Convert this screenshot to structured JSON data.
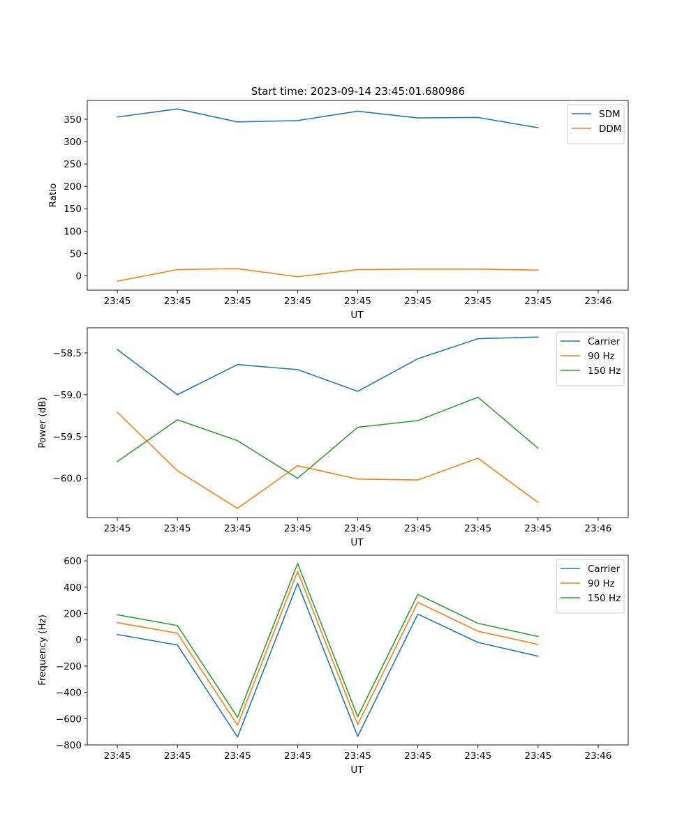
{
  "figure": {
    "title": "Start time: 2023-09-14 23:45:01.680986"
  },
  "colors": {
    "blue": "#1f77b4",
    "orange": "#ff7f0e",
    "green": "#2ca02c"
  },
  "chart_data": [
    {
      "type": "line",
      "ylabel": "Ratio",
      "xlabel": "UT",
      "x_tick_labels": [
        "23:45",
        "23:45",
        "23:45",
        "23:45",
        "23:45",
        "23:45",
        "23:45",
        "23:45",
        "23:46"
      ],
      "xlim": [
        -0.5,
        8.5
      ],
      "ylim": [
        -32,
        392
      ],
      "yticks": [
        0,
        50,
        100,
        150,
        200,
        250,
        300,
        350
      ],
      "y_tick_labels": [
        "0",
        "50",
        "100",
        "150",
        "200",
        "250",
        "300",
        "350"
      ],
      "x": [
        0,
        1,
        2,
        3,
        4,
        5,
        6,
        7
      ],
      "legend_position": "upper-right",
      "series": [
        {
          "name": "SDM",
          "color": "#1f77b4",
          "values": [
            355,
            373,
            344,
            347,
            368,
            353,
            354,
            331
          ]
        },
        {
          "name": "DDM",
          "color": "#ff7f0e",
          "values": [
            -12,
            14,
            16,
            -2,
            14,
            15,
            15,
            13
          ]
        }
      ]
    },
    {
      "type": "line",
      "ylabel": "Power (dB)",
      "xlabel": "UT",
      "x_tick_labels": [
        "23:45",
        "23:45",
        "23:45",
        "23:45",
        "23:45",
        "23:45",
        "23:45",
        "23:45",
        "23:46"
      ],
      "xlim": [
        -0.5,
        8.5
      ],
      "ylim": [
        -60.47,
        -58.2
      ],
      "yticks": [
        -60.0,
        -59.5,
        -59.0,
        -58.5
      ],
      "y_tick_labels": [
        "−60.0",
        "−59.5",
        "−59.0",
        "−58.5"
      ],
      "x": [
        0,
        1,
        2,
        3,
        4,
        5,
        6,
        7
      ],
      "legend_position": "upper-right",
      "series": [
        {
          "name": "Carrier",
          "color": "#1f77b4",
          "values": [
            -58.46,
            -59.0,
            -58.64,
            -58.7,
            -58.96,
            -58.57,
            -58.33,
            -58.31
          ]
        },
        {
          "name": "90 Hz",
          "color": "#ff7f0e",
          "values": [
            -59.21,
            -59.91,
            -60.36,
            -59.85,
            -60.01,
            -60.02,
            -59.76,
            -60.29
          ]
        },
        {
          "name": "150 Hz",
          "color": "#2ca02c",
          "values": [
            -59.8,
            -59.3,
            -59.55,
            -60.0,
            -59.39,
            -59.31,
            -59.03,
            -59.64
          ]
        }
      ]
    },
    {
      "type": "line",
      "ylabel": "Frequency (Hz)",
      "xlabel": "UT",
      "x_tick_labels": [
        "23:45",
        "23:45",
        "23:45",
        "23:45",
        "23:45",
        "23:45",
        "23:45",
        "23:45",
        "23:46"
      ],
      "xlim": [
        -0.5,
        8.5
      ],
      "ylim": [
        -800,
        643
      ],
      "yticks": [
        -800,
        -600,
        -400,
        -200,
        0,
        200,
        400,
        600
      ],
      "y_tick_labels": [
        "−800",
        "−600",
        "−400",
        "−200",
        "0",
        "200",
        "400",
        "600"
      ],
      "x": [
        0,
        1,
        2,
        3,
        4,
        5,
        6,
        7
      ],
      "legend_position": "upper-right",
      "series": [
        {
          "name": "Carrier",
          "color": "#1f77b4",
          "values": [
            40,
            -40,
            -740,
            430,
            -735,
            195,
            -20,
            -125
          ]
        },
        {
          "name": "90 Hz",
          "color": "#ff7f0e",
          "values": [
            130,
            50,
            -650,
            520,
            -645,
            285,
            65,
            -35
          ]
        },
        {
          "name": "150 Hz",
          "color": "#2ca02c",
          "values": [
            190,
            108,
            -590,
            580,
            -585,
            345,
            125,
            25
          ]
        }
      ]
    }
  ]
}
